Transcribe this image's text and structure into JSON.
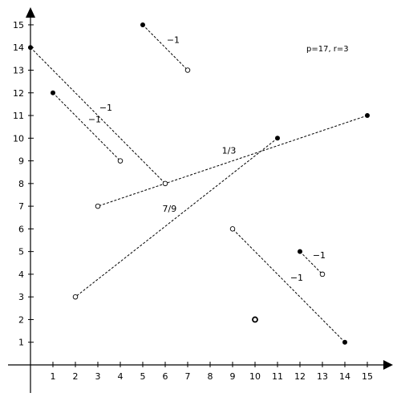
{
  "chart_data": {
    "type": "scatter",
    "title": "",
    "xlabel": "",
    "ylabel": "",
    "xlim": [
      0,
      15
    ],
    "ylim": [
      0,
      15
    ],
    "x_ticks": [
      "1",
      "2",
      "3",
      "4",
      "5",
      "6",
      "7",
      "8",
      "9",
      "10",
      "11",
      "12",
      "13",
      "14",
      "15"
    ],
    "y_ticks": [
      "1",
      "2",
      "3",
      "4",
      "5",
      "6",
      "7",
      "8",
      "9",
      "10",
      "11",
      "12",
      "13",
      "14",
      "15"
    ],
    "grid": false,
    "params_text": "p=17, r=3",
    "segments": [
      {
        "filled": [
          5,
          15
        ],
        "hollow": [
          7,
          13
        ],
        "label": "−1"
      },
      {
        "filled": [
          0,
          14
        ],
        "hollow": [
          6,
          8
        ],
        "label": "−1"
      },
      {
        "filled": [
          1,
          12
        ],
        "hollow": [
          4,
          9
        ],
        "label": "−1"
      },
      {
        "filled": [
          15,
          11
        ],
        "hollow": [
          3,
          7
        ],
        "label": "1/3"
      },
      {
        "filled": [
          11,
          10
        ],
        "hollow": [
          2,
          3
        ],
        "label": "7/9"
      },
      {
        "filled": [
          14,
          1
        ],
        "hollow": [
          9,
          6
        ],
        "label": "−1"
      },
      {
        "filled": [
          12,
          5
        ],
        "hollow": [
          13,
          4
        ],
        "label": "−1"
      }
    ],
    "isolated_points": [
      {
        "x": 10,
        "y": 2,
        "style": "hollow-bold"
      }
    ]
  }
}
